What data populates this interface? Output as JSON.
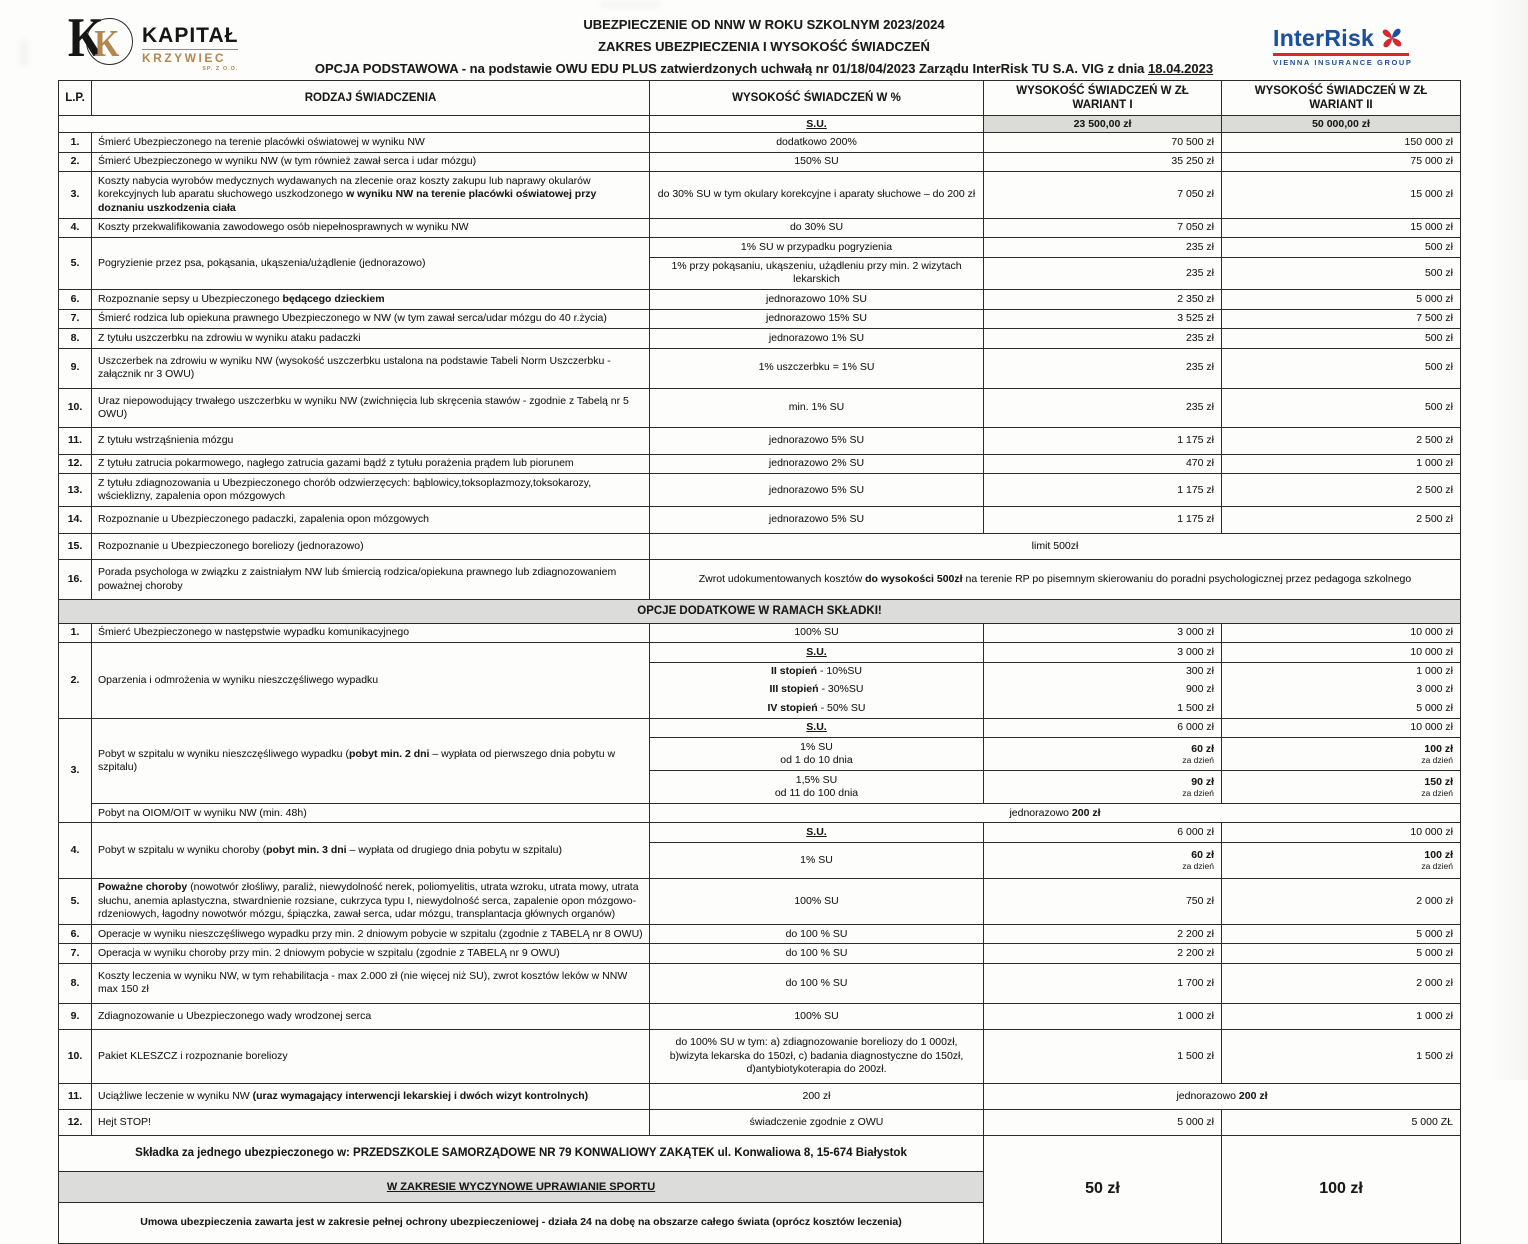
{
  "header": {
    "brand": {
      "name": "KAPITAŁ",
      "subname": "KRZYWIEC",
      "suffix": "SP. Z O.O."
    },
    "line1": "UBEZPIECZENIE OD NNW W ROKU SZKOLNYM 2023/2024",
    "line2": "ZAKRES UBEZPIECZENIA I WYSOKOŚĆ ŚWIADCZEŃ",
    "line3_pre": "OPCJA PODSTAWOWA - na podstawie OWU EDU PLUS  zatwierdzonych uchwałą nr 01/18/04/2023 Zarządu InterRisk TU S.A. VIG z dnia ",
    "line3_date": "18.04.2023",
    "insurer": {
      "name": "InterRisk",
      "subtitle": "VIENNA INSURANCE GROUP"
    }
  },
  "colors": {
    "interrisk_blue": "#1d4f9e",
    "interrisk_red": "#d7282f",
    "kapital_gold": "#b3874f",
    "band_gray": "#dcdcda"
  },
  "table": {
    "headers": {
      "lp": "L.P.",
      "type": "RODZAJ ŚWIADCZENIA",
      "percent": "WYSOKOŚĆ ŚWIADCZEŃ W %",
      "variant1": "WYSOKOŚĆ ŚWIADCZEŃ W ZŁ  WARIANT I",
      "variant2": "WYSOKOŚĆ ŚWIADCZEŃ W ZŁ WARIANT II"
    },
    "subheader": {
      "su_label": "S.U.",
      "variant1_sum": "23 500,00 zł",
      "variant2_sum": "50 000,00 zł"
    },
    "basic_rows": [
      {
        "lp": "1.",
        "name": "Śmierć Ubezpieczonego na terenie placówki oświatowej w wyniku NW",
        "percent": "dodatkowo 200%",
        "v1": "70 500 zł",
        "v2": "150 000 zł"
      },
      {
        "lp": "2.",
        "name": "Śmierć Ubezpieczonego w wyniku NW (w tym również zawał serca i udar mózgu)",
        "percent": "150% SU",
        "v1": "35 250 zł",
        "v2": "75 000 zł"
      },
      {
        "lp": "3.",
        "name": [
          {
            "t": "Koszty nabycia wyrobów medycznych wydawanych na zlecenie oraz koszty zakupu lub naprawy okularów korekcyjnych lub aparatu słuchowego uszkodzonego "
          },
          {
            "t": "w wyniku NW na terenie placówki oświatowej przy doznaniu uszkodzenia ciała",
            "b": true
          }
        ],
        "percent": "do 30% SU w tym okulary korekcyjne i aparaty słuchowe – do 200 zł",
        "v1": "7 050 zł",
        "v2": "15 000 zł"
      },
      {
        "lp": "4.",
        "name": "Koszty przekwalifikowania zawodowego osób niepełnosprawnych w wyniku NW",
        "percent": "do 30% SU",
        "v1": "7 050 zł",
        "v2": "15 000 zł"
      },
      {
        "lp": "5.",
        "name": "Pogryzienie przez psa, pokąsania, ukąszenia/użądlenie (jednorazowo)",
        "subrows": [
          {
            "percent": "1% SU w przypadku pogryzienia",
            "v1": "235 zł",
            "v2": "500 zł"
          },
          {
            "percent": "1% przy pokąsaniu, ukąszeniu, użądleniu przy min. 2 wizytach lekarskich",
            "v1": "235 zł",
            "v2": "500 zł"
          }
        ]
      },
      {
        "lp": "6.",
        "name": [
          {
            "t": "Rozpoznanie sepsy u Ubezpieczonego "
          },
          {
            "t": "będącego dzieckiem",
            "b": true
          }
        ],
        "percent": "jednorazowo 10% SU",
        "v1": "2 350 zł",
        "v2": "5 000 zł"
      },
      {
        "lp": "7.",
        "name": "Śmierć rodzica lub opiekuna prawnego Ubezpieczonego w NW  (w tym zawał serca/udar mózgu do 40 r.życia)",
        "percent": "jednorazowo 15% SU",
        "v1": "3 525 zł",
        "v2": "7 500 zł"
      },
      {
        "lp": "8.",
        "name": "Z tytułu uszczerbku na zdrowiu w wyniku ataku padaczki",
        "percent": "jednorazowo 1% SU",
        "v1": "235 zł",
        "v2": "500 zł"
      },
      {
        "lp": "9.",
        "name": "Uszczerbek na zdrowiu w wyniku NW (wysokość uszczerbku ustalona na podstawie Tabeli Norm Uszczerbku - załącznik nr 3 OWU)",
        "percent": "1% uszczerbku = 1% SU",
        "v1": "235 zł",
        "v2": "500 zł",
        "tall": true
      },
      {
        "lp": "10.",
        "name": "Uraz niepowodujący trwałego uszczerbku w wyniku NW (zwichnięcia  lub skręcenia stawów - zgodnie z  Tabelą nr 5 OWU)",
        "percent": "min. 1% SU",
        "v1": "235 zł",
        "v2": "500 zł",
        "tall": true
      },
      {
        "lp": "11.",
        "name": "Z tytułu wstrząśnienia mózgu",
        "percent": "jednorazowo 5% SU",
        "v1": "1 175 zł",
        "v2": "2 500 zł",
        "tall": true
      },
      {
        "lp": "12.",
        "name": "Z tytułu zatrucia pokarmowego, nagłego zatrucia  gazami bądź z tytułu porażenia prądem lub piorunem",
        "percent": "jednorazowo 2% SU",
        "v1": "470 zł",
        "v2": "1 000 zł"
      },
      {
        "lp": "13.",
        "name": "Z tytułu zdiagnozowania u Ubezpieczonego chorób odzwierzęcych: bąblowicy,toksoplazmozy,toksokarozy, wścieklizny, zapalenia opon mózgowych",
        "percent": "jednorazowo 5% SU",
        "v1": "1 175 zł",
        "v2": "2 500 zł"
      },
      {
        "lp": "14.",
        "name": "Rozpoznanie u Ubezpieczonego padaczki, zapalenia opon mózgowych",
        "percent": "jednorazowo 5% SU",
        "v1": "1 175 zł",
        "v2": "2 500 zł",
        "tall": true
      },
      {
        "lp": "15.",
        "name": "Rozpoznanie u Ubezpieczonego boreliozy (jednorazowo)",
        "span_all": "limit 500zł",
        "tall": true
      },
      {
        "lp": "16.",
        "name": "Porada psychologa w związku z zaistniałym NW lub śmiercią rodzica/opiekuna prawnego lub zdiagnozowaniem poważnej choroby",
        "span_all": [
          {
            "t": "Zwrot udokumentowanych kosztów "
          },
          {
            "t": "do wysokości 500zł",
            "b": true
          },
          {
            "t": " na terenie RP po pisemnym skierowaniu do poradni psychologicznej przez pedagoga szkolnego"
          }
        ],
        "tall": true
      }
    ],
    "additional_section_title": "OPCJE DODATKOWE W RAMACH SKŁADKI!",
    "additional_rows": [
      {
        "lp": "1.",
        "name": "Śmierć Ubezpieczonego w następstwie wypadku komunikacyjnego",
        "percent": "100% SU",
        "v1": "3 000 zł",
        "v2": "10 000 zł"
      },
      {
        "lp": "2.",
        "name": "Oparzenia i odmrożenia w wyniku nieszczęśliwego wypadku",
        "subrows": [
          {
            "percent": "S.U.",
            "su": true,
            "v1": "3 000 zł",
            "v2": "10 000 zł"
          },
          {
            "percent": [
              {
                "t": "II stopień",
                "b": true
              },
              {
                "t": " - 10%SU"
              }
            ],
            "v1": "300 zł",
            "v2": "1 000 zł",
            "noline": true
          },
          {
            "percent": [
              {
                "t": "III stopień",
                "b": true
              },
              {
                "t": " - 30%SU"
              }
            ],
            "v1": "900 zł",
            "v2": "3 000 zł",
            "noline": true
          },
          {
            "percent": [
              {
                "t": "IV stopień",
                "b": true
              },
              {
                "t": " - 50% SU"
              }
            ],
            "v1": "1 500 zł",
            "v2": "5 000 zł"
          }
        ]
      },
      {
        "lp": "3.",
        "name": [
          {
            "t": "Pobyt w szpitalu w wyniku nieszczęśliwego wypadku ("
          },
          {
            "t": "pobyt min. 2 dni",
            "b": true
          },
          {
            "t": " – wypłata od pierwszego dnia pobytu w szpitalu)"
          }
        ],
        "subrows": [
          {
            "percent": "S.U.",
            "su": true,
            "v1": "6 000 zł",
            "v2": "10 000 zł"
          },
          {
            "percent": {
              "lines": [
                "1% SU",
                "od 1 do 10 dnia"
              ]
            },
            "v1": {
              "main": "60 zł",
              "sub": "za dzień"
            },
            "v2": {
              "main": "100 zł",
              "sub": "za dzień"
            }
          },
          {
            "percent": {
              "lines": [
                "1,5% SU",
                "od 11 do 100 dnia"
              ]
            },
            "v1": {
              "main": "90 zł",
              "sub": "za dzień"
            },
            "v2": {
              "main": "150 zł",
              "sub": "za dzień"
            }
          }
        ],
        "tail": {
          "name": "Pobyt na OIOM/OIT w wyniku NW (min. 48h)",
          "span_all": [
            {
              "t": "jednorazowo "
            },
            {
              "t": "200 zł",
              "b": true
            }
          ]
        }
      },
      {
        "lp": "4.",
        "name": [
          {
            "t": "Pobyt w szpitalu w wyniku choroby ("
          },
          {
            "t": "pobyt min. 3 dni",
            "b": true
          },
          {
            "t": " – wypłata od drugiego dnia pobytu w szpitalu)"
          }
        ],
        "subrows": [
          {
            "percent": "S.U.",
            "su": true,
            "v1": "6 000 zł",
            "v2": "10 000 zł"
          },
          {
            "percent": "1% SU",
            "v1": {
              "main": "60 zł",
              "sub": "za dzień"
            },
            "v2": {
              "main": "100 zł",
              "sub": "za dzień"
            },
            "tall": true
          }
        ]
      },
      {
        "lp": "5.",
        "name": [
          {
            "t": "Poważne choroby ",
            "b": true
          },
          {
            "t": "(nowotwór złośliwy, paraliż, niewydolność nerek, poliomyelitis, utrata wzroku, utrata mowy, utrata słuchu, anemia aplastyczna, stwardnienie rozsiane, cukrzyca typu I, niewydolność serca, zapalenie opon mózgowo-rdzeniowych, łagodny nowotwór mózgu, śpiączka, zawał serca, udar mózgu, transplantacja głównych organów)"
          }
        ],
        "percent": "100% SU",
        "v1": "750 zł",
        "v2": "2 000 zł"
      },
      {
        "lp": "6.",
        "name": "Operacje w wyniku nieszczęśliwego wypadku przy min. 2 dniowym pobycie w szpitalu (zgodnie z TABELĄ nr 8 OWU)",
        "percent": "do 100 % SU",
        "v1": "2 200 zł",
        "v2": "5 000 zł"
      },
      {
        "lp": "7.",
        "name": "Operacja w wyniku choroby przy min. 2 dniowym pobycie w szpitalu (zgodnie z TABELĄ nr 9 OWU)",
        "percent": "do 100 % SU",
        "v1": "2 200 zł",
        "v2": "5 000 zł"
      },
      {
        "lp": "8.",
        "name": "Koszty leczenia w wyniku NW, w tym rehabilitacja  - max 2.000 zł (nie więcej niż SU), zwrot kosztów leków w NNW max 150 zł",
        "percent": "do 100 % SU",
        "v1": "1 700 zł",
        "v2": "2 000 zł",
        "tall": true
      },
      {
        "lp": "9.",
        "name": "Zdiagnozowanie u Ubezpieczonego wady wrodzonej serca",
        "percent": "100% SU",
        "v1": "1 000 zł",
        "v2": "1 000 zł",
        "tall": true
      },
      {
        "lp": "10.",
        "name": "Pakiet KLESZCZ i rozpoznanie boreliozy",
        "percent": "do 100% SU w tym: a) zdiagnozowanie boreliozy do 1 000zł, b)wizyta lekarska do 150zł, c) badania diagnostyczne do 150zł, d)antybiotykoterapia do 200zł.",
        "v1": "1 500 zł",
        "v2": "1 500 zł",
        "tall": true
      },
      {
        "lp": "11.",
        "name": [
          {
            "t": "Uciążliwe leczenie w wyniku NW "
          },
          {
            "t": "(uraz wymagający interwencji lekarskiej i dwóch wizyt kontrolnych)",
            "b": true
          }
        ],
        "percent": "200 zł",
        "span_right": [
          {
            "t": "jednorazowo "
          },
          {
            "t": "200 zł",
            "b": true
          }
        ],
        "tall": true
      },
      {
        "lp": "12.",
        "name": "Hejt STOP!",
        "percent": "świadczenie zgodnie z OWU",
        "v1": "5 000 zł",
        "v2": "5 000 ZŁ",
        "tall": true
      }
    ],
    "footer": {
      "row1": [
        {
          "t": "Składka za jednego ubezpieczonego w:  PRZEDSZKOLE  SAMORZĄDOWE NR 79 KONWALIOWY ZAKĄTEK    ul. Konwaliowa 8, 15-674 Białystok",
          "b": true
        }
      ],
      "row2": "W ZAKRESIE WYCZYNOWE UPRAWIANIE SPORTU",
      "row3": [
        {
          "t": "Umowa ubezpieczenia zawarta jest w zakresie pełnej ochrony ubezpieczeniowej -  działa 24 na dobę na obszarze całego świata (oprócz kosztów leczenia)",
          "b": true
        }
      ],
      "premium_v1": "50 zł",
      "premium_v2": "100 zł"
    }
  }
}
